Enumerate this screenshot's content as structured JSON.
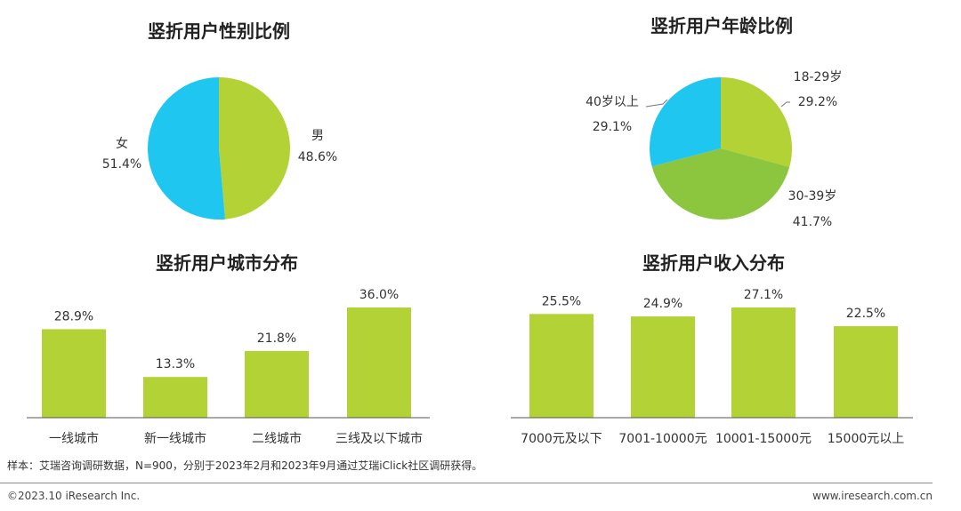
{
  "colors": {
    "bar": "#b2d235",
    "cyan": "#1fc7f0",
    "lime": "#b2d235",
    "green": "#8cc63f",
    "axis": "#555555",
    "leader": "#777777"
  },
  "chart_data": [
    {
      "type": "pie",
      "title": "竖折用户性别比例",
      "slices": [
        {
          "name": "男",
          "value": 48.6,
          "label": "48.6%",
          "color": "#b2d235"
        },
        {
          "name": "女",
          "value": 51.4,
          "label": "51.4%",
          "color": "#1fc7f0"
        }
      ]
    },
    {
      "type": "pie",
      "title": "竖折用户年龄比例",
      "slices": [
        {
          "name": "18-29岁",
          "value": 29.2,
          "label": "29.2%",
          "color": "#b2d235"
        },
        {
          "name": "30-39岁",
          "value": 41.7,
          "label": "41.7%",
          "color": "#8cc63f"
        },
        {
          "name": "40岁以上",
          "value": 29.1,
          "label": "29.1%",
          "color": "#1fc7f0"
        }
      ]
    },
    {
      "type": "bar",
      "title": "竖折用户城市分布",
      "categories": [
        "一线城市",
        "新一线城市",
        "二线城市",
        "三线及以下城市"
      ],
      "values": [
        28.9,
        13.3,
        21.8,
        36.0
      ],
      "labels": [
        "28.9%",
        "13.3%",
        "21.8%",
        "36.0%"
      ]
    },
    {
      "type": "bar",
      "title": "竖折用户收入分布",
      "categories": [
        "7000元及以下",
        "7001-10000元",
        "10001-15000元",
        "15000元以上"
      ],
      "values": [
        25.5,
        24.9,
        27.1,
        22.5
      ],
      "labels": [
        "25.5%",
        "24.9%",
        "27.1%",
        "22.5%"
      ]
    }
  ],
  "note": "样本：艾瑞咨询调研数据，N=900，分别于2023年2月和2023年9月通过艾瑞iClick社区调研获得。",
  "footer": {
    "copyright": "©2023.10 iResearch Inc.",
    "website": "www.iresearch.com.cn"
  }
}
